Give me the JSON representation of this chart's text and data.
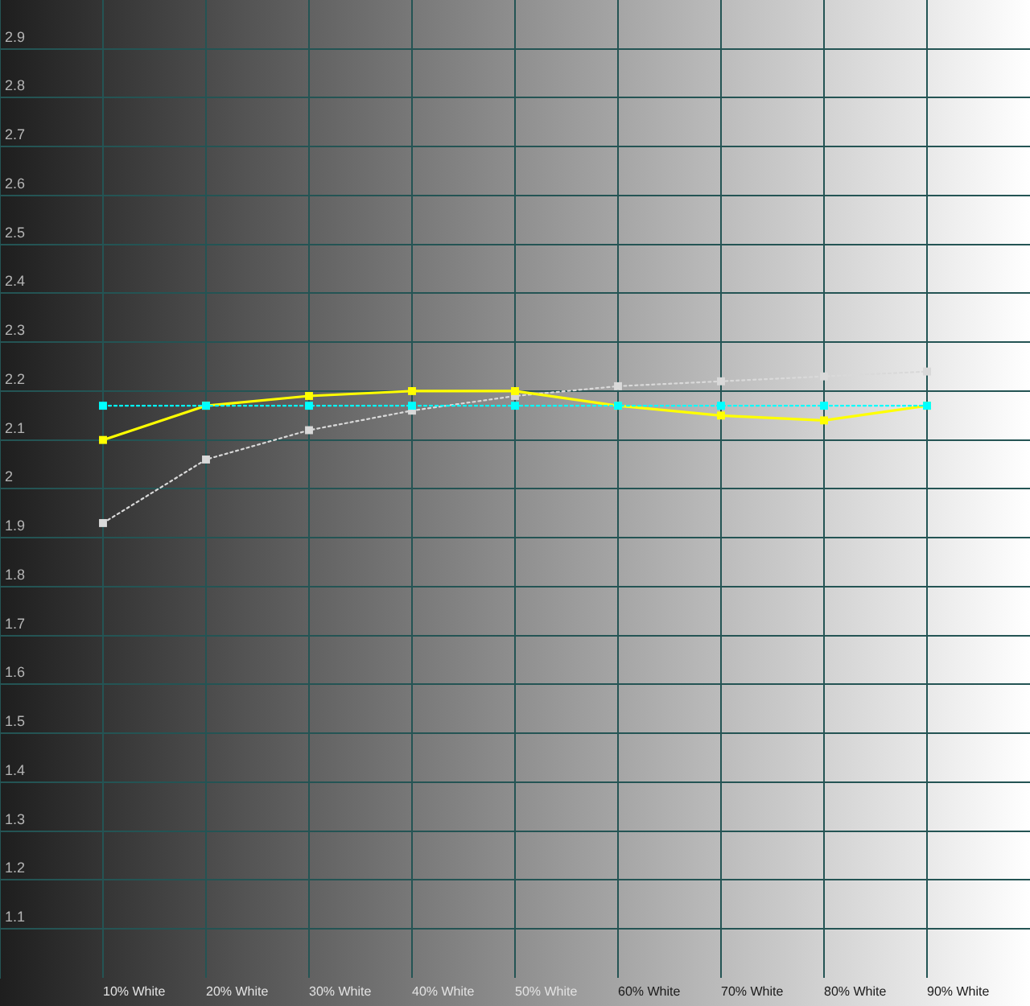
{
  "chart_data": {
    "type": "line",
    "categories": [
      "10% White",
      "20% White",
      "30% White",
      "40% White",
      "50% White",
      "60% White",
      "70% White",
      "80% White",
      "90% White"
    ],
    "series": [
      {
        "color": "#00ffff",
        "line_style": "dotted",
        "values": [
          2.17,
          2.17,
          2.17,
          2.17,
          2.17,
          2.17,
          2.17,
          2.17,
          2.17
        ]
      },
      {
        "color": "#ffff00",
        "line_style": "solid",
        "values": [
          2.1,
          2.17,
          2.19,
          2.2,
          2.2,
          2.17,
          2.15,
          2.14,
          2.17
        ]
      },
      {
        "color": "#d9d9d9",
        "line_style": "dotted",
        "values": [
          1.93,
          2.06,
          2.12,
          2.16,
          2.19,
          2.21,
          2.22,
          2.23,
          2.24
        ]
      }
    ],
    "ylim": [
      1,
      3
    ],
    "yticks": [
      1.1,
      1.2,
      1.3,
      1.4,
      1.5,
      1.6,
      1.7,
      1.8,
      1.9,
      2,
      2.1,
      2.2,
      2.3,
      2.4,
      2.5,
      2.6,
      2.7,
      2.8,
      2.9
    ],
    "grid": true,
    "marker": "square"
  }
}
